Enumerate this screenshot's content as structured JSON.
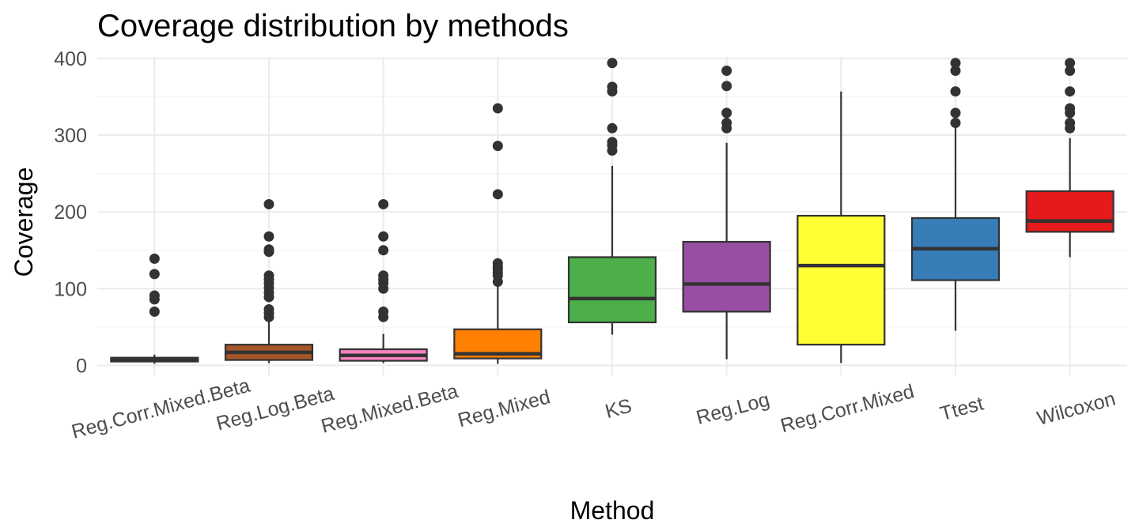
{
  "chart_data": {
    "type": "boxplot",
    "title": "Coverage distribution by methods",
    "xlabel": "Method",
    "ylabel": "Coverage",
    "ylim": [
      -13,
      402
    ],
    "y_ticks": [
      0,
      100,
      200,
      300,
      400
    ],
    "grid": true,
    "legend": "none",
    "categories": [
      "Reg.Corr.Mixed.Beta",
      "Reg.Log.Beta",
      "Reg.Mixed.Beta",
      "Reg.Mixed",
      "KS",
      "Reg.Log",
      "Reg.Corr.Mixed",
      "Ttest",
      "Wilcoxon"
    ],
    "boxes": [
      {
        "method": "Reg.Corr.Mixed.Beta",
        "color": "#4d4d4d",
        "whisker_low": 2,
        "q1": 5,
        "median": 8,
        "q3": 10,
        "whisker_high": 14,
        "outliers": [
          70,
          86,
          91,
          119,
          139
        ]
      },
      {
        "method": "Reg.Log.Beta",
        "color": "#a65628",
        "whisker_low": 3,
        "q1": 7,
        "median": 17,
        "q3": 27,
        "whisker_high": 57,
        "outliers": [
          63,
          68,
          73,
          89,
          95,
          101,
          107,
          112,
          117,
          148,
          151,
          168,
          210
        ]
      },
      {
        "method": "Reg.Mixed.Beta",
        "color": "#f781bf",
        "whisker_low": 3,
        "q1": 6,
        "median": 13,
        "q3": 21,
        "whisker_high": 41,
        "outliers": [
          63,
          70,
          100,
          107,
          112,
          117,
          150,
          168,
          210
        ]
      },
      {
        "method": "Reg.Mixed",
        "color": "#ff7f00",
        "whisker_low": 2,
        "q1": 9,
        "median": 15,
        "q3": 47,
        "whisker_high": 103,
        "outliers": [
          109,
          117,
          121,
          125,
          128,
          133,
          223,
          286,
          335
        ]
      },
      {
        "method": "KS",
        "color": "#4daf4a",
        "whisker_low": 40,
        "q1": 56,
        "median": 87,
        "q3": 141,
        "whisker_high": 260,
        "outliers": [
          280,
          287,
          291,
          309,
          357,
          363,
          394
        ]
      },
      {
        "method": "Reg.Log",
        "color": "#984ea3",
        "whisker_low": 8,
        "q1": 70,
        "median": 106,
        "q3": 161,
        "whisker_high": 290,
        "outliers": [
          309,
          316,
          329,
          364,
          384
        ]
      },
      {
        "method": "Reg.Corr.Mixed",
        "color": "#ffff33",
        "whisker_low": 3,
        "q1": 27,
        "median": 130,
        "q3": 195,
        "whisker_high": 357,
        "outliers": []
      },
      {
        "method": "Ttest",
        "color": "#377eb8",
        "whisker_low": 45,
        "q1": 111,
        "median": 152,
        "q3": 192,
        "whisker_high": 310,
        "outliers": [
          316,
          329,
          357,
          384,
          394
        ]
      },
      {
        "method": "Wilcoxon",
        "color": "#e41a1c",
        "whisker_low": 141,
        "q1": 174,
        "median": 188,
        "q3": 227,
        "whisker_high": 296,
        "outliers": [
          309,
          316,
          329,
          335,
          357,
          384,
          394
        ]
      }
    ]
  }
}
